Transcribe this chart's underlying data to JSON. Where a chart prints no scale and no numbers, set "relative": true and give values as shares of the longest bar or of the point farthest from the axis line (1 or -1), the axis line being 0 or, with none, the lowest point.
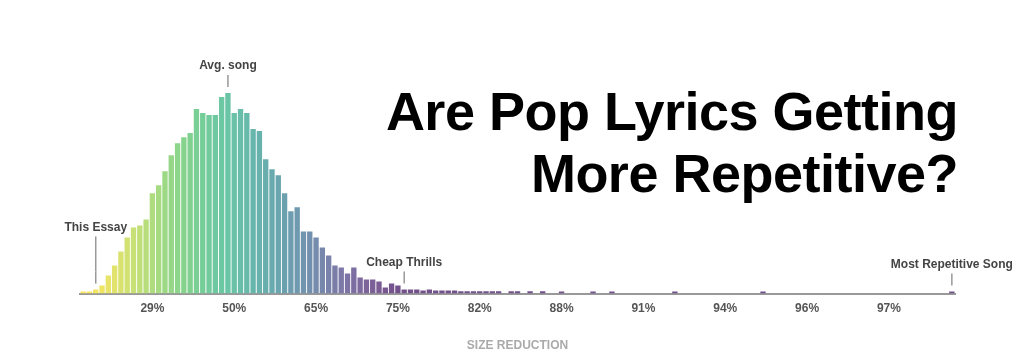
{
  "chart_data": {
    "type": "bar",
    "title": "Are Pop Lyrics Getting More Repetitive?",
    "xlabel": "SIZE REDUCTION",
    "relative": true,
    "grid": false,
    "legend": false,
    "categories": [
      null,
      null,
      null,
      null,
      null,
      null,
      null,
      null,
      null,
      null,
      null,
      "29%",
      null,
      null,
      null,
      null,
      null,
      null,
      null,
      null,
      null,
      null,
      null,
      null,
      "50%",
      null,
      null,
      null,
      null,
      null,
      null,
      null,
      null,
      null,
      null,
      null,
      null,
      "65%",
      null,
      null,
      null,
      null,
      null,
      null,
      null,
      null,
      null,
      null,
      null,
      null,
      "75%",
      null,
      null,
      null,
      null,
      null,
      null,
      null,
      null,
      null,
      null,
      null,
      null,
      "82%",
      null,
      null,
      null,
      null,
      null,
      null,
      null,
      null,
      null,
      null,
      null,
      null,
      "88%",
      null,
      null,
      null,
      null,
      null,
      null,
      null,
      null,
      null,
      null,
      null,
      null,
      "91%",
      null,
      null,
      null,
      null,
      null,
      null,
      null,
      null,
      null,
      null,
      null,
      null,
      "94%",
      null,
      null,
      null,
      null,
      null,
      null,
      null,
      null,
      null,
      null,
      null,
      null,
      "96%",
      null,
      null,
      null,
      null,
      null,
      null,
      null,
      null,
      null,
      null,
      null,
      null,
      "97%",
      null,
      null,
      null,
      null,
      null,
      null,
      null,
      null,
      null,
      null
    ],
    "values": [
      0.01,
      0.01,
      0.02,
      0.04,
      0.09,
      0.14,
      0.21,
      0.28,
      0.33,
      0.34,
      0.37,
      0.5,
      0.54,
      0.61,
      0.69,
      0.75,
      0.78,
      0.8,
      0.92,
      0.9,
      0.89,
      0.89,
      0.98,
      1,
      0.9,
      0.92,
      0.9,
      0.82,
      0.81,
      0.67,
      0.62,
      0.59,
      0.5,
      0.41,
      0.43,
      0.31,
      0.31,
      0.28,
      0.23,
      0.19,
      0.14,
      0.13,
      0.1,
      0.13,
      0.08,
      0.07,
      0.07,
      0.06,
      0.03,
      0.05,
      0.04,
      0.02,
      0.02,
      0.02,
      0.015,
      0.02,
      0.015,
      0.015,
      0.015,
      0.015,
      0.012,
      0.012,
      0.012,
      0.012,
      0.012,
      0.012,
      0.012,
      null,
      0.012,
      0.012,
      null,
      0.012,
      null,
      0.012,
      null,
      null,
      0.01,
      null,
      null,
      null,
      null,
      0.01,
      null,
      null,
      0.01,
      null,
      null,
      null,
      null,
      null,
      null,
      null,
      null,
      null,
      0.01,
      null,
      null,
      null,
      null,
      null,
      null,
      null,
      null,
      null,
      null,
      null,
      null,
      null,
      0.01,
      null,
      null,
      null,
      null,
      null,
      null,
      null,
      null,
      null,
      null,
      null,
      null,
      null,
      null,
      null,
      null,
      null,
      null,
      null,
      null,
      null,
      null,
      null,
      null,
      null,
      null,
      null,
      null,
      null,
      0.01
    ],
    "colors": [
      "#fbe75a",
      "#f8e75c",
      "#f3e560",
      "#eee564",
      "#e8e469",
      "#e1e36c",
      "#d9e26f",
      "#d1e172",
      "#c8e075",
      "#c0df78",
      "#b8de7b",
      "#afdc7e",
      "#a6db81",
      "#9dd984",
      "#95d787",
      "#8dd58a",
      "#86d38d",
      "#80d190",
      "#7acf94",
      "#75cd98",
      "#71cb9c",
      "#6ec9a0",
      "#6cc7a3",
      "#6ac4a6",
      "#69c1a8",
      "#68bea9",
      "#68baab",
      "#67b6ac",
      "#67b2ad",
      "#68aeae",
      "#69aaae",
      "#6aa6af",
      "#6ba1af",
      "#6d9daf",
      "#6f99af",
      "#7195af",
      "#7390ae",
      "#758cad",
      "#7787ac",
      "#7982ab",
      "#7b7da9",
      "#7c78a7",
      "#7d73a4",
      "#7d6ea1",
      "#7d699e",
      "#7c649a",
      "#7b5f97",
      "#7a5b94",
      "#785791",
      "#76548e",
      "#73528c",
      "#73528c",
      "#73528c",
      "#73528c",
      "#73528c",
      "#73528c",
      "#73528c",
      "#73528c",
      "#73528c",
      "#73528c",
      "#73528c",
      "#73528c",
      "#73528c",
      "#73528c",
      "#73528c",
      "#73528c",
      "#73528c",
      "#73528c",
      "#73528c",
      "#73528c",
      "#73528c",
      "#73528c",
      "#73528c",
      "#73528c",
      "#73528c",
      "#73528c",
      "#73528c",
      "#73528c",
      "#73528c",
      "#73528c",
      "#73528c",
      "#73528c",
      "#73528c",
      "#73528c",
      "#73528c",
      "#73528c",
      "#73528c",
      "#73528c",
      "#73528c",
      "#73528c",
      "#73528c",
      "#73528c",
      "#73528c",
      "#73528c",
      "#73528c",
      "#73528c",
      "#73528c",
      "#73528c",
      "#73528c",
      "#73528c",
      "#73528c",
      "#73528c",
      "#73528c",
      "#73528c",
      "#73528c",
      "#73528c",
      "#73528c",
      "#73528c",
      "#73528c",
      "#73528c",
      "#73528c",
      "#73528c",
      "#73528c",
      "#73528c",
      "#73528c",
      "#73528c",
      "#73528c",
      "#73528c",
      "#73528c",
      "#73528c",
      "#73528c",
      "#73528c",
      "#73528c",
      "#73528c",
      "#73528c",
      "#73528c",
      "#73528c",
      "#73528c",
      "#73528c",
      "#73528c",
      "#73528c",
      "#73528c",
      "#73528c",
      "#73528c",
      "#73528c",
      "#73528c",
      "#73528c",
      "#73528c",
      "#73528c"
    ],
    "annotations": [
      "This Essay",
      "Avg. song",
      "Cheap Thrills",
      "Most Repetitive Song"
    ]
  }
}
